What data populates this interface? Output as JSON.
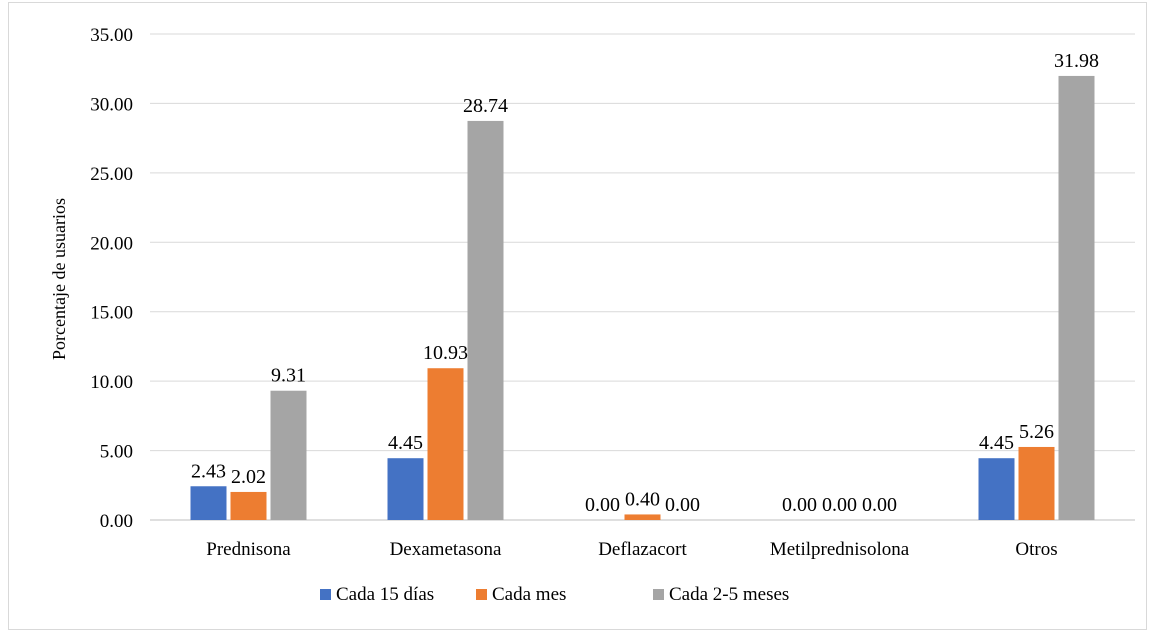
{
  "chart_data": {
    "type": "bar",
    "title": "",
    "xlabel": "",
    "ylabel": "Porcentaje de usuarios",
    "ylim": [
      0,
      35
    ],
    "yticks": [
      "0.00",
      "5.00",
      "10.00",
      "15.00",
      "20.00",
      "25.00",
      "30.00",
      "35.00"
    ],
    "categories": [
      "Prednisona",
      "Dexametasona",
      "Deflazacort",
      "Metilprednisolona",
      "Otros"
    ],
    "series": [
      {
        "name": "Cada 15 días",
        "color": "#4472c4",
        "values": [
          2.43,
          4.45,
          0.0,
          0.0,
          4.45
        ],
        "labels": [
          "2.43",
          "4.45",
          "0.00",
          "0.00",
          "4.45"
        ]
      },
      {
        "name": "Cada mes",
        "color": "#ed7d31",
        "values": [
          2.02,
          10.93,
          0.4,
          0.0,
          5.26
        ],
        "labels": [
          "2.02",
          "10.93",
          "0.40",
          "0.00",
          "5.26"
        ]
      },
      {
        "name": "Cada 2-5 meses",
        "color": "#a5a5a5",
        "values": [
          9.31,
          28.74,
          0.0,
          0.0,
          31.98
        ],
        "labels": [
          "9.31",
          "28.74",
          "0.00",
          "0.00",
          "31.98"
        ]
      }
    ],
    "grid": true,
    "legend_position": "bottom"
  }
}
